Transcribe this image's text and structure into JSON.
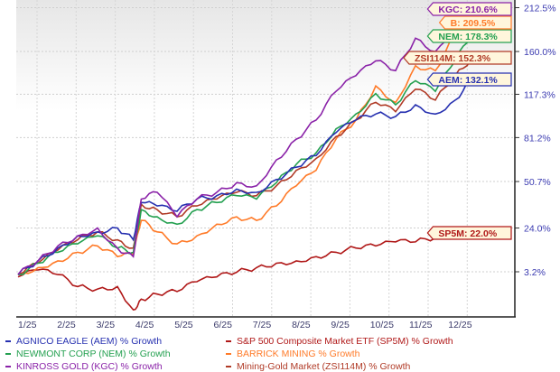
{
  "chart_data": {
    "type": "line",
    "title": "",
    "xlabel": "",
    "ylabel": "% Growth",
    "y_scale": "log(1+v)",
    "y_ticks": [
      "3.2%",
      "24.0%",
      "50.7%",
      "81.2%",
      "117.3%",
      "160.0%",
      "212.5%"
    ],
    "y_tick_values": [
      3.2,
      24.0,
      50.7,
      81.2,
      117.3,
      160.0,
      212.5
    ],
    "x_ticks": [
      "1/25",
      "2/25",
      "3/25",
      "4/25",
      "5/25",
      "6/25",
      "7/25",
      "8/25",
      "9/25",
      "10/25",
      "11/25",
      "12/25"
    ],
    "x_months": [
      0,
      0.5,
      1,
      1.5,
      2,
      2.5,
      2.9,
      3.1,
      3.5,
      4,
      4.5,
      5,
      5.5,
      6,
      6.5,
      7,
      7.5,
      8,
      8.5,
      9,
      9.5,
      10,
      10.5,
      11,
      11.4
    ],
    "grid": true,
    "legend_position": "bottom",
    "series": [
      {
        "name": "AGNICO EAGLE (AEM) % Growth",
        "tag": "AEM: 132.1%",
        "color": "#2630b0",
        "values": [
          2,
          8,
          14,
          20,
          22,
          24,
          18,
          38,
          36,
          33,
          40,
          42,
          46,
          44,
          52,
          60,
          68,
          85,
          95,
          100,
          98,
          108,
          100,
          112,
          132.1
        ]
      },
      {
        "name": "S&P 500 Composite Market ETF (SP5M) % Growth",
        "tag": "SP5M: 22.0%",
        "color": "#b01818",
        "values": [
          1,
          4,
          2,
          -3,
          -4,
          -3,
          -12,
          -8,
          -6,
          -5,
          -1,
          1,
          3,
          5,
          7,
          8,
          10,
          12,
          14,
          15,
          17,
          17,
          19,
          20,
          22.0
        ]
      },
      {
        "name": "NEWMONT CORP (NEM) % Growth",
        "tag": "NEM: 178.3%",
        "color": "#24a050",
        "values": [
          2,
          7,
          12,
          16,
          20,
          14,
          12,
          34,
          30,
          26,
          34,
          38,
          42,
          40,
          50,
          62,
          70,
          88,
          100,
          118,
          108,
          130,
          120,
          150,
          178.3
        ]
      },
      {
        "name": "BARRICK MINING % Growth",
        "tag": "B: 209.5%",
        "color": "#ff7a28",
        "values": [
          2,
          5,
          8,
          12,
          15,
          10,
          11,
          28,
          22,
          16,
          20,
          26,
          30,
          28,
          36,
          48,
          58,
          80,
          95,
          125,
          110,
          145,
          140,
          180,
          209.5
        ]
      },
      {
        "name": "KINROSS GOLD (KGC) % Growth",
        "tag": "KGC: 210.6%",
        "color": "#8a22a8",
        "values": [
          2,
          8,
          15,
          20,
          24,
          14,
          10,
          40,
          44,
          30,
          40,
          44,
          50,
          48,
          65,
          80,
          95,
          120,
          135,
          150,
          140,
          175,
          160,
          190,
          210.6
        ]
      },
      {
        "name": "Mining-Gold Market (ZSI114M) % Growth",
        "tag": "ZSI114M: 152.3%",
        "color": "#b03a26",
        "values": [
          2,
          7,
          13,
          18,
          22,
          18,
          14,
          37,
          34,
          30,
          36,
          40,
          44,
          42,
          48,
          58,
          66,
          82,
          95,
          110,
          102,
          122,
          112,
          135,
          152.3
        ]
      }
    ],
    "label_box_color": "#fff6dc",
    "tick_color": "#3a3ab0"
  }
}
